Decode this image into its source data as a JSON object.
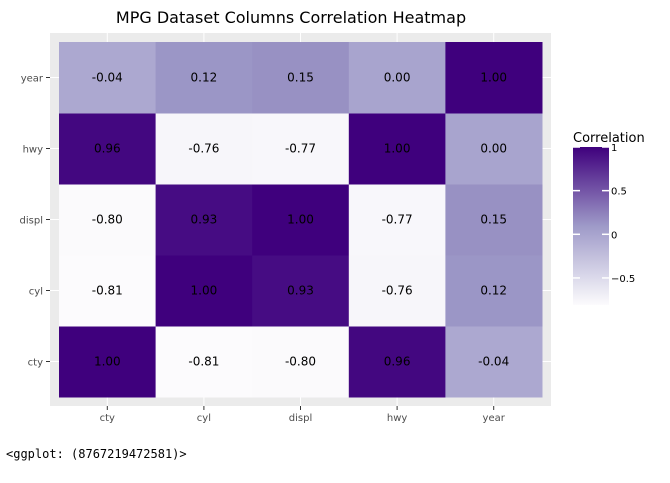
{
  "chart_data": {
    "type": "heatmap",
    "title": "MPG Dataset Columns Correlation Heatmap",
    "x_categories": [
      "cty",
      "cyl",
      "displ",
      "hwy",
      "year"
    ],
    "y_categories": [
      "cty",
      "cyl",
      "displ",
      "hwy",
      "year"
    ],
    "values": [
      [
        1.0,
        -0.81,
        -0.8,
        0.96,
        -0.04
      ],
      [
        -0.81,
        1.0,
        0.93,
        -0.76,
        0.12
      ],
      [
        -0.8,
        0.93,
        1.0,
        -0.77,
        0.15
      ],
      [
        0.96,
        -0.76,
        -0.77,
        1.0,
        0.0
      ],
      [
        -0.04,
        0.12,
        0.15,
        0.0,
        1.0
      ]
    ],
    "value_labels": [
      [
        "1.00",
        "-0.81",
        "-0.80",
        "0.96",
        "-0.04"
      ],
      [
        "-0.81",
        "1.00",
        "0.93",
        "-0.76",
        "0.12"
      ],
      [
        "-0.80",
        "0.93",
        "1.00",
        "-0.77",
        "0.15"
      ],
      [
        "0.96",
        "-0.76",
        "-0.77",
        "1.00",
        "0.00"
      ],
      [
        "-0.04",
        "0.12",
        "0.15",
        "0.00",
        "1.00"
      ]
    ],
    "legend": {
      "title": "Correlation",
      "breaks": [
        1,
        0.5,
        0,
        -0.5
      ],
      "break_labels": [
        "1",
        "0.5",
        "0",
        "−0.5"
      ],
      "range": [
        -0.81,
        1.0
      ],
      "low_color": "#fcfbfd",
      "high_color": "#3f007d",
      "placement": "right"
    },
    "panel_background": "#ebebeb",
    "grid": true
  },
  "footer_text": "<ggplot: (8767219472581)>"
}
